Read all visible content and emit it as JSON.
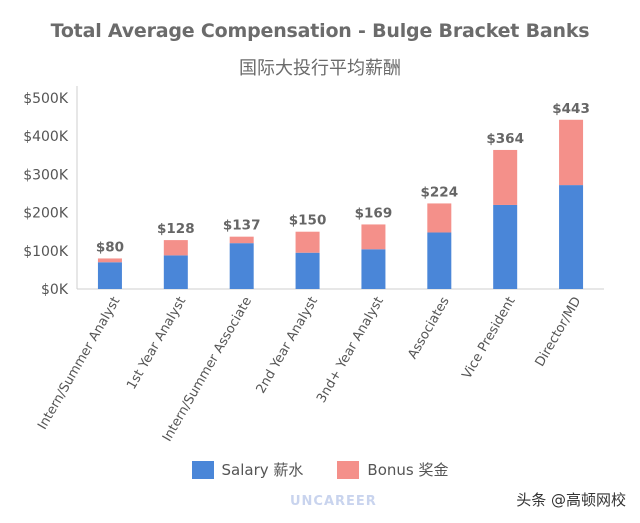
{
  "header": {
    "title": "Total Average Compensation - Bulge Bracket Banks",
    "subtitle": "国际大投行平均薪酬"
  },
  "chart_data": {
    "type": "bar",
    "stacked": true,
    "title": "Total Average Compensation - Bulge Bracket Banks",
    "subtitle": "国际大投行平均薪酬",
    "categories": [
      "Intern/Summer Analyst",
      "1st Year Analyst",
      "Intern/Summer Associate",
      "2nd Year Analyst",
      "3nd+ Year Analyst",
      "Associates",
      "Vice President",
      "Director/MD"
    ],
    "series": [
      {
        "name": "Salary 薪水",
        "color": "#4a86d8",
        "values": [
          70,
          88,
          120,
          95,
          104,
          148,
          220,
          272
        ]
      },
      {
        "name": "Bonus 奖金",
        "color": "#f4908a",
        "values": [
          10,
          40,
          17,
          55,
          65,
          76,
          144,
          171
        ]
      }
    ],
    "totals": [
      "$80",
      "$128",
      "$137",
      "$150",
      "$169",
      "$224",
      "$364",
      "$443"
    ],
    "ylim": [
      0,
      500
    ],
    "yticks": [
      0,
      100,
      200,
      300,
      400,
      500
    ],
    "ytick_labels": [
      "$0K",
      "$100K",
      "$200K",
      "$300K",
      "$400K",
      "$500K"
    ],
    "xlabel": "",
    "ylabel": "",
    "grid": false,
    "legend_position": "bottom"
  },
  "legend": {
    "salary_label": "Salary 薪水",
    "bonus_label": "Bonus 奖金"
  },
  "footer": {
    "logo_text": "UNCAREER",
    "attribution": "头条 @高顿网校"
  }
}
